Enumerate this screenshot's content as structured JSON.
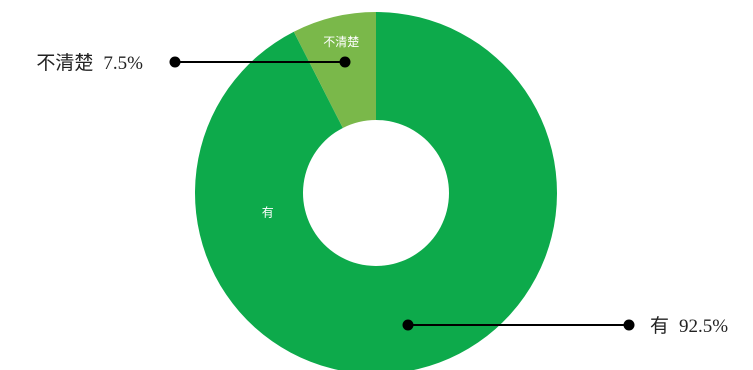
{
  "chart_data": {
    "type": "pie",
    "variant": "donut",
    "title": "",
    "slices": [
      {
        "label": "有",
        "value": 92.5,
        "display": "92.5%",
        "color": "#0daa4b"
      },
      {
        "label": "不清楚",
        "value": 7.5,
        "display": "7.5%",
        "color": "#7ab84a"
      }
    ],
    "legend": "none"
  }
}
